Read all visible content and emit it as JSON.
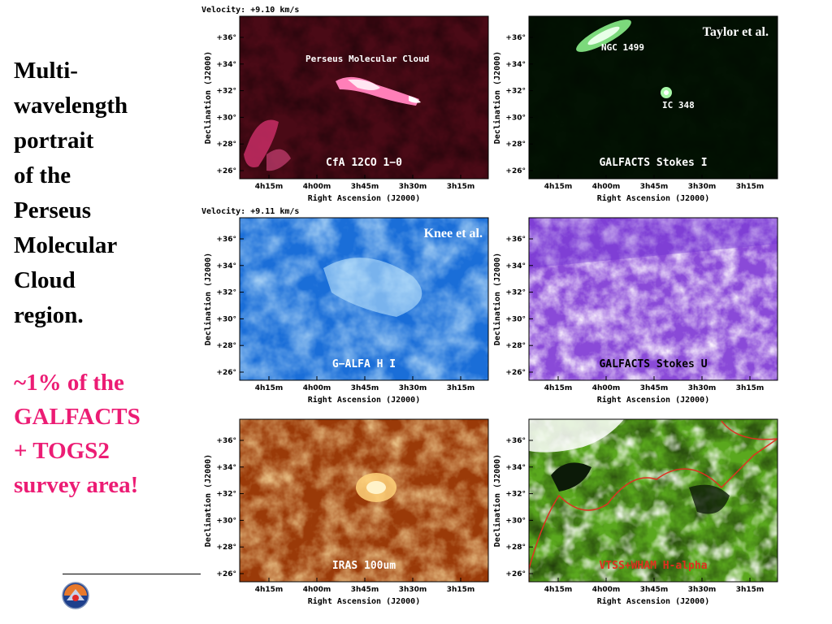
{
  "title_lines": [
    "Multi-",
    "wavelength",
    "portrait",
    "of the",
    "Perseus",
    "Molecular",
    "Cloud",
    "region."
  ],
  "subtitle_lines": [
    "~1% of the",
    "GALFACTS",
    "+ TOGS2",
    "survey area!"
  ],
  "colors": {
    "accent": "#ec1c74",
    "title": "#000000"
  },
  "logo_icon": "survey-logo-icon",
  "axes": {
    "ylabel": "Declination (J2000)",
    "xlabel": "Right Ascension (J2000)",
    "yticks": [
      "+36°",
      "+34°",
      "+32°",
      "+30°",
      "+28°",
      "+26°"
    ],
    "xticks": [
      "4h15m",
      "4h00m",
      "3h45m",
      "3h30m",
      "3h15m"
    ]
  },
  "panels": [
    {
      "label": "CfA 12CO 1−0",
      "velocity": "Velocity: +9.10 km/s",
      "annotation": "Perseus Molecular Cloud",
      "palette": "red"
    },
    {
      "label": "GALFACTS Stokes I",
      "credit": "Taylor et al.",
      "sources": [
        "NGC 1499",
        "IC 348"
      ],
      "palette": "green"
    },
    {
      "label": "G−ALFA H I",
      "velocity": "Velocity: +9.11 km/s",
      "credit": "Knee et al.",
      "palette": "blue"
    },
    {
      "label": "GALFACTS Stokes U",
      "palette": "purple"
    },
    {
      "label": "IRAS 100um",
      "palette": "orange"
    },
    {
      "label": "VTSS+WHAM H-alpha",
      "palette": "lime"
    }
  ]
}
